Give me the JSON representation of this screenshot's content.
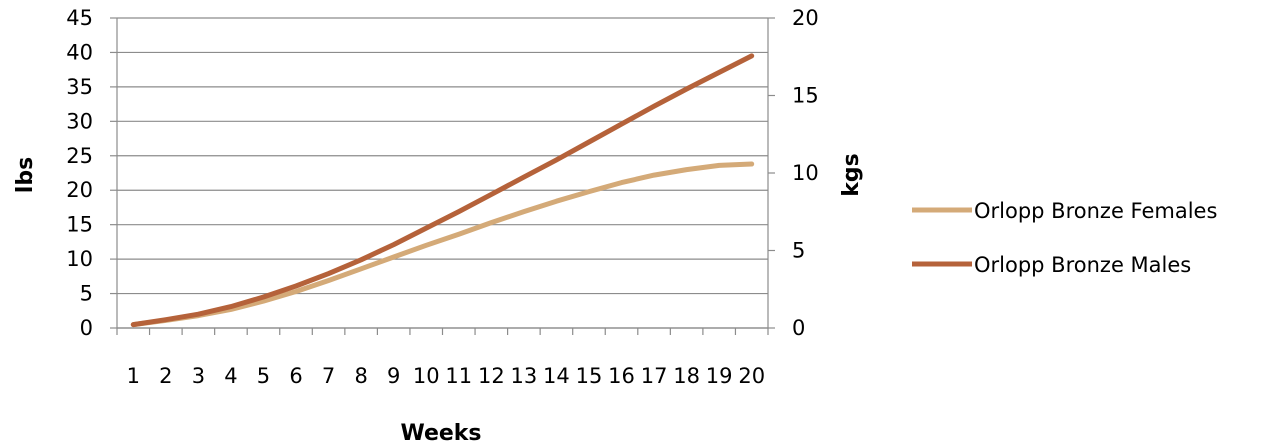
{
  "chart_data": {
    "type": "line",
    "xlabel": "Weeks",
    "ylabel": "lbs",
    "y2label": "kgs",
    "categories": [
      "1",
      "2",
      "3",
      "4",
      "5",
      "6",
      "7",
      "8",
      "9",
      "10",
      "11",
      "12",
      "13",
      "14",
      "15",
      "16",
      "17",
      "18",
      "19",
      "20"
    ],
    "ylim": [
      0,
      45
    ],
    "yticks": [
      0,
      5,
      10,
      15,
      20,
      25,
      30,
      35,
      40,
      45
    ],
    "y2lim": [
      0,
      20
    ],
    "y2ticks": [
      0,
      5,
      10,
      15,
      20
    ],
    "grid": true,
    "legend_position": "right",
    "series": [
      {
        "name": "Orlopp Bronze Females",
        "color": "#d4aa78",
        "values": [
          0.5,
          1.1,
          1.8,
          2.7,
          3.9,
          5.3,
          6.9,
          8.6,
          10.3,
          12.0,
          13.6,
          15.3,
          16.9,
          18.4,
          19.8,
          21.1,
          22.2,
          23.0,
          23.6,
          23.8
        ]
      },
      {
        "name": "Orlopp Bronze Males",
        "color": "#b5623a",
        "values": [
          0.5,
          1.2,
          2.0,
          3.1,
          4.5,
          6.1,
          7.9,
          9.9,
          12.1,
          14.5,
          16.9,
          19.4,
          21.9,
          24.4,
          27.0,
          29.6,
          32.2,
          34.7,
          37.1,
          39.5
        ]
      }
    ]
  }
}
